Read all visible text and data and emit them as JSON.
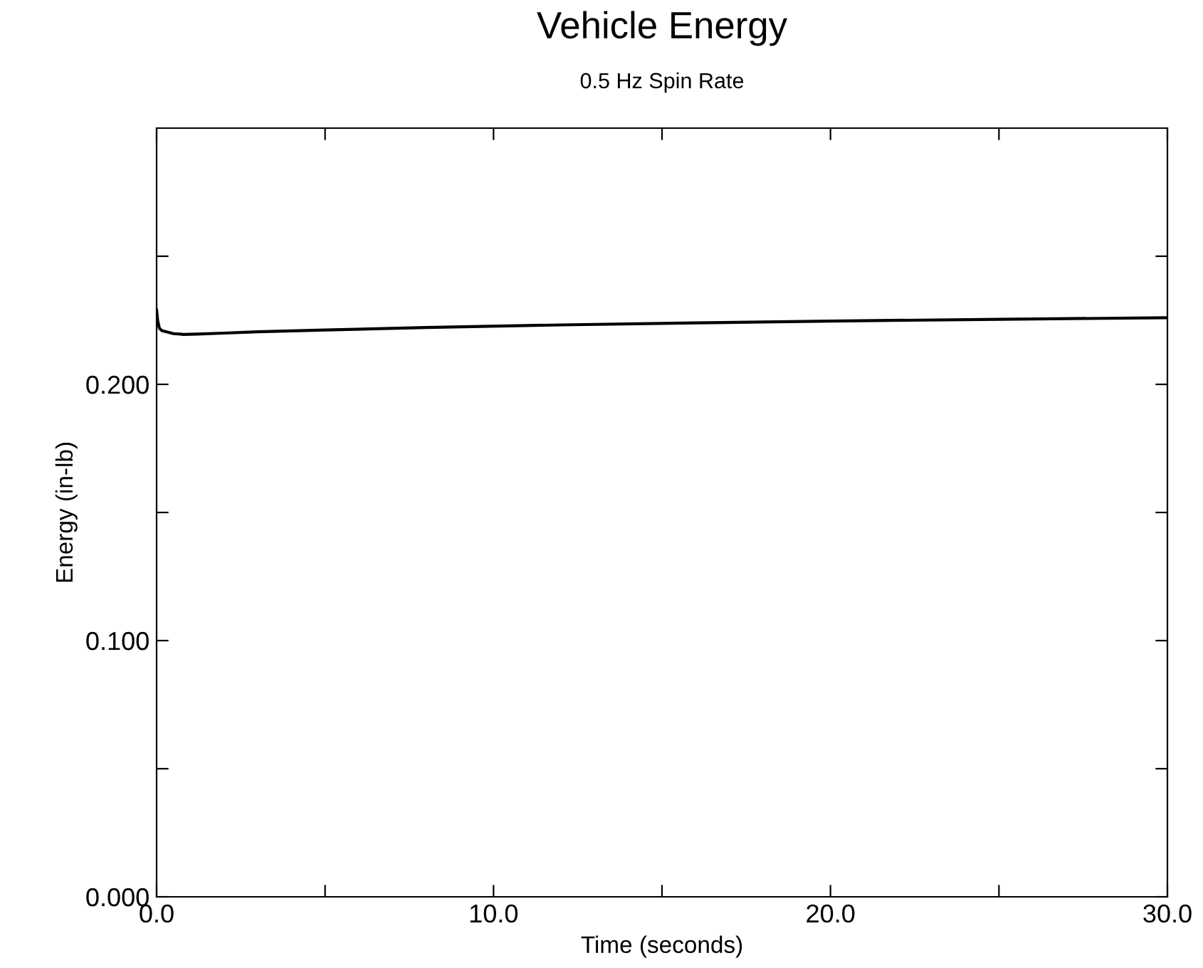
{
  "chart_data": {
    "type": "line",
    "title": "Vehicle Energy",
    "subtitle": "0.5 Hz Spin Rate",
    "xlabel": "Time (seconds)",
    "ylabel": "Energy (in-lb)",
    "x": [
      0,
      0.03,
      0.08,
      0.15,
      0.3,
      0.5,
      0.8,
      1.2,
      2,
      3,
      5,
      8,
      12,
      16,
      20,
      25,
      30
    ],
    "series": [
      {
        "color": "#000000",
        "values": [
          0.229,
          0.225,
          0.222,
          0.221,
          0.2205,
          0.2198,
          0.2195,
          0.2196,
          0.22,
          0.2205,
          0.2212,
          0.2222,
          0.2232,
          0.224,
          0.2247,
          0.2254,
          0.226
        ]
      }
    ],
    "xlim": [
      0,
      30
    ],
    "ylim": [
      0,
      0.3
    ],
    "xticks": [
      {
        "value": 0,
        "label": "0.0"
      },
      {
        "value": 5,
        "label": null
      },
      {
        "value": 10,
        "label": "10.0"
      },
      {
        "value": 15,
        "label": null
      },
      {
        "value": 20,
        "label": "20.0"
      },
      {
        "value": 25,
        "label": null
      },
      {
        "value": 30,
        "label": "30.0"
      }
    ],
    "yticks": [
      {
        "value": 0,
        "label": "0.000"
      },
      {
        "value": 0.05,
        "label": null
      },
      {
        "value": 0.1,
        "label": "0.100"
      },
      {
        "value": 0.15,
        "label": null
      },
      {
        "value": 0.2,
        "label": "0.200"
      },
      {
        "value": 0.25,
        "label": null
      }
    ],
    "grid": false,
    "legend": false,
    "marker": "none",
    "line_style": "solid"
  }
}
